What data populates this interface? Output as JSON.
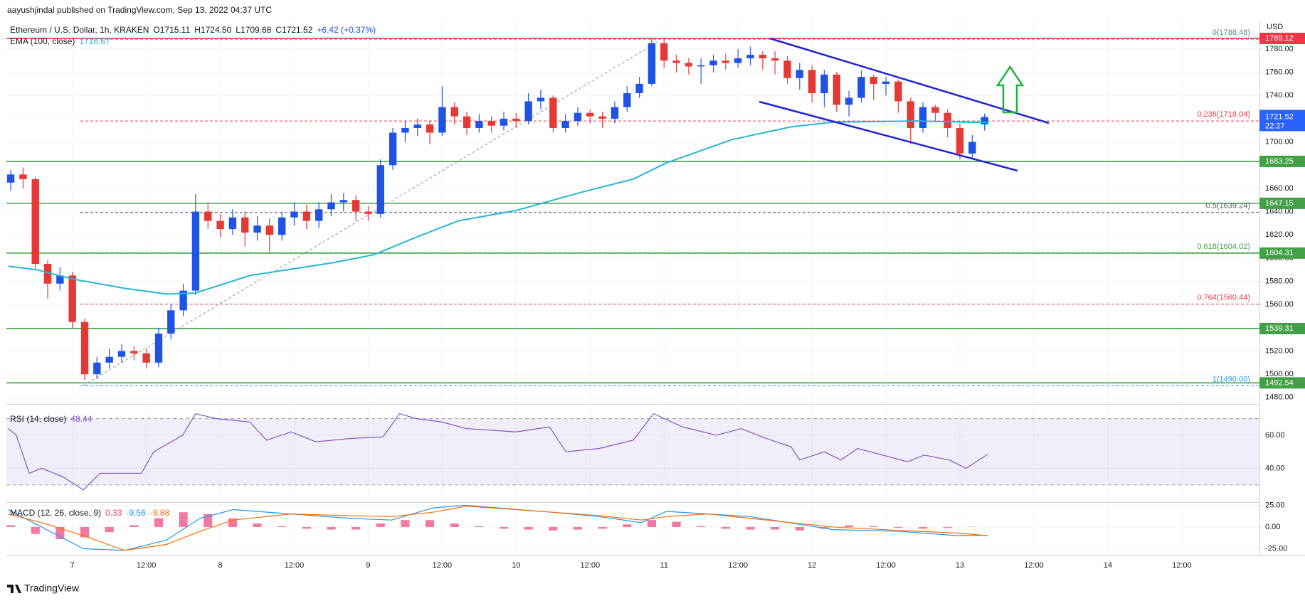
{
  "header": {
    "publisher": "aayushjindal published on TradingView.com, Sep 13, 2022 04:37 UTC",
    "symbol": "Ethereum / U.S. Dollar, 1h, KRAKEN",
    "ohlc_labels": [
      "O1715.11",
      "H1724.50",
      "L1709.68",
      "C1721.52"
    ],
    "change": "+6.42 (+0.37%)",
    "currency": "USD"
  },
  "footer": {
    "brand": "TradingView"
  },
  "chart_data": [
    {
      "type": "candlestick",
      "up_color": "#1e53e5",
      "down_color": "#e53935",
      "grid": true,
      "xlim": [
        -10.7,
        192.6
      ],
      "xticks": [
        {
          "value": 0,
          "label": "7"
        },
        {
          "value": 12,
          "label": "12:00"
        },
        {
          "value": 24,
          "label": "8"
        },
        {
          "value": 36,
          "label": "12:00"
        },
        {
          "value": 48,
          "label": "9"
        },
        {
          "value": 60,
          "label": "12:00"
        },
        {
          "value": 72,
          "label": "10"
        },
        {
          "value": 84,
          "label": "12:00"
        },
        {
          "value": 96,
          "label": "11"
        },
        {
          "value": 108,
          "label": "12:00"
        },
        {
          "value": 120,
          "label": "12"
        },
        {
          "value": 132,
          "label": "12:00"
        },
        {
          "value": 144,
          "label": "13"
        },
        {
          "value": 156,
          "label": "12:00"
        },
        {
          "value": 168,
          "label": "14"
        },
        {
          "value": 180,
          "label": "12:00"
        }
      ],
      "ylim": [
        1475,
        1802
      ],
      "yticks": [
        {
          "value": 1480,
          "label": "1480.00"
        },
        {
          "value": 1500,
          "label": "1500.00"
        },
        {
          "value": 1520,
          "label": "1520.00"
        },
        {
          "value": 1540,
          "label": "1540.00"
        },
        {
          "value": 1560,
          "label": "1560.00"
        },
        {
          "value": 1580,
          "label": "1580.00"
        },
        {
          "value": 1600,
          "label": "1600.00"
        },
        {
          "value": 1620,
          "label": "1620.00"
        },
        {
          "value": 1640,
          "label": "1640.00"
        },
        {
          "value": 1660,
          "label": "1660.00"
        },
        {
          "value": 1680,
          "label": "1680.00"
        },
        {
          "value": 1700,
          "label": "1700.00"
        },
        {
          "value": 1720,
          "label": "1720.00"
        },
        {
          "value": 1740,
          "label": "1740.00"
        },
        {
          "value": 1760,
          "label": "1760.00"
        },
        {
          "value": 1780,
          "label": "1780.00"
        }
      ],
      "x": [
        -10,
        -8,
        -6,
        -4,
        -2,
        0,
        2,
        4,
        6,
        8,
        10,
        12,
        14,
        16,
        18,
        20,
        22,
        24,
        26,
        28,
        30,
        32,
        34,
        36,
        38,
        40,
        42,
        44,
        46,
        48,
        50,
        52,
        54,
        56,
        58,
        60,
        62,
        64,
        66,
        68,
        70,
        72,
        74,
        76,
        78,
        80,
        82,
        84,
        86,
        88,
        90,
        92,
        94,
        96,
        98,
        100,
        102,
        104,
        106,
        108,
        110,
        112,
        114,
        116,
        118,
        120,
        122,
        124,
        126,
        128,
        130,
        132,
        134,
        136,
        138,
        140,
        142,
        144,
        146,
        148
      ],
      "ohlc": [
        [
          1665,
          1676,
          1658,
          1672
        ],
        [
          1672,
          1678,
          1660,
          1668
        ],
        [
          1668,
          1670,
          1590,
          1595
        ],
        [
          1595,
          1598,
          1565,
          1578
        ],
        [
          1578,
          1592,
          1572,
          1585
        ],
        [
          1585,
          1588,
          1540,
          1545
        ],
        [
          1545,
          1548,
          1495,
          1500
        ],
        [
          1500,
          1515,
          1496,
          1510
        ],
        [
          1510,
          1522,
          1505,
          1515
        ],
        [
          1515,
          1526,
          1510,
          1520
        ],
        [
          1520,
          1524,
          1512,
          1518
        ],
        [
          1518,
          1522,
          1505,
          1510
        ],
        [
          1510,
          1540,
          1506,
          1535
        ],
        [
          1535,
          1560,
          1530,
          1555
        ],
        [
          1555,
          1578,
          1550,
          1572
        ],
        [
          1572,
          1655,
          1568,
          1640
        ],
        [
          1640,
          1648,
          1625,
          1632
        ],
        [
          1632,
          1638,
          1618,
          1625
        ],
        [
          1625,
          1642,
          1620,
          1635
        ],
        [
          1635,
          1640,
          1610,
          1622
        ],
        [
          1622,
          1636,
          1615,
          1628
        ],
        [
          1628,
          1634,
          1605,
          1620
        ],
        [
          1620,
          1640,
          1615,
          1635
        ],
        [
          1635,
          1648,
          1628,
          1640
        ],
        [
          1640,
          1646,
          1625,
          1632
        ],
        [
          1632,
          1648,
          1626,
          1642
        ],
        [
          1642,
          1655,
          1636,
          1648
        ],
        [
          1648,
          1656,
          1640,
          1650
        ],
        [
          1650,
          1654,
          1632,
          1640
        ],
        [
          1640,
          1645,
          1632,
          1638
        ],
        [
          1638,
          1685,
          1635,
          1680
        ],
        [
          1680,
          1712,
          1676,
          1708
        ],
        [
          1708,
          1718,
          1700,
          1712
        ],
        [
          1712,
          1720,
          1705,
          1715
        ],
        [
          1715,
          1718,
          1698,
          1708
        ],
        [
          1708,
          1748,
          1705,
          1730
        ],
        [
          1730,
          1734,
          1715,
          1722
        ],
        [
          1722,
          1726,
          1706,
          1712
        ],
        [
          1712,
          1724,
          1708,
          1718
        ],
        [
          1718,
          1722,
          1708,
          1714
        ],
        [
          1714,
          1726,
          1710,
          1720
        ],
        [
          1720,
          1725,
          1712,
          1718
        ],
        [
          1718,
          1742,
          1715,
          1735
        ],
        [
          1735,
          1745,
          1728,
          1738
        ],
        [
          1738,
          1740,
          1708,
          1712
        ],
        [
          1712,
          1724,
          1708,
          1718
        ],
        [
          1718,
          1730,
          1714,
          1725
        ],
        [
          1725,
          1728,
          1716,
          1722
        ],
        [
          1722,
          1726,
          1712,
          1720
        ],
        [
          1720,
          1735,
          1716,
          1730
        ],
        [
          1730,
          1748,
          1726,
          1742
        ],
        [
          1742,
          1756,
          1738,
          1750
        ],
        [
          1750,
          1789,
          1748,
          1785
        ],
        [
          1785,
          1788,
          1764,
          1770
        ],
        [
          1770,
          1775,
          1760,
          1768
        ],
        [
          1768,
          1772,
          1758,
          1765
        ],
        [
          1765,
          1772,
          1750,
          1766
        ],
        [
          1766,
          1775,
          1760,
          1770
        ],
        [
          1770,
          1776,
          1762,
          1768
        ],
        [
          1768,
          1780,
          1764,
          1772
        ],
        [
          1772,
          1782,
          1766,
          1775
        ],
        [
          1775,
          1778,
          1762,
          1772
        ],
        [
          1772,
          1778,
          1758,
          1770
        ],
        [
          1770,
          1774,
          1750,
          1755
        ],
        [
          1755,
          1768,
          1745,
          1762
        ],
        [
          1762,
          1766,
          1734,
          1742
        ],
        [
          1742,
          1762,
          1730,
          1758
        ],
        [
          1758,
          1760,
          1726,
          1732
        ],
        [
          1732,
          1744,
          1722,
          1738
        ],
        [
          1738,
          1762,
          1734,
          1756
        ],
        [
          1756,
          1758,
          1736,
          1750
        ],
        [
          1750,
          1756,
          1740,
          1752
        ],
        [
          1752,
          1754,
          1725,
          1735
        ],
        [
          1735,
          1738,
          1698,
          1712
        ],
        [
          1712,
          1734,
          1708,
          1730
        ],
        [
          1730,
          1732,
          1718,
          1725
        ],
        [
          1725,
          1728,
          1704,
          1712
        ],
        [
          1712,
          1716,
          1685,
          1690
        ],
        [
          1690,
          1706,
          1686,
          1700
        ],
        [
          1715.11,
          1724.5,
          1709.68,
          1721.52
        ]
      ],
      "last": 1721.52,
      "countdown": "22:27",
      "last_color": "#2962ff",
      "ema": {
        "name": "EMA (100, close)",
        "last": 1716.67,
        "color": "#26b5d6",
        "x": [
          -10.4,
          -5.8,
          0,
          8.5,
          15.3,
          20,
          28.8,
          42.3,
          49,
          55.8,
          62.6,
          72,
          82.8,
          91,
          96.4,
          107,
          116.6,
          123.4,
          137,
          148.5
        ],
        "values": [
          1593,
          1590,
          1582,
          1574,
          1569,
          1570,
          1585,
          1596,
          1603,
          1618,
          1632,
          1641,
          1657,
          1668,
          1682,
          1702,
          1713,
          1717,
          1718,
          1716.67
        ]
      },
      "levels": [
        {
          "value": 1789.12,
          "color": "#f23645"
        },
        {
          "value": 1683.25,
          "color": "#43a047"
        },
        {
          "value": 1647.15,
          "color": "#43a047"
        },
        {
          "value": 1604.31,
          "color": "#43a047"
        },
        {
          "value": 1539.31,
          "color": "#43a047"
        },
        {
          "value": 1492.54,
          "color": "#43a047"
        }
      ],
      "fib": [
        {
          "label": "0(1788.48)",
          "value": 1788.48,
          "color": "#787b86"
        },
        {
          "label": "0.236(1718.04)",
          "value": 1718.04,
          "color": "#f23645"
        },
        {
          "label": "0.5(1639.24)",
          "value": 1639.24,
          "color": "#555a66"
        },
        {
          "label": "0.618(1604.02)",
          "value": 1604.02,
          "color": "#43a047"
        },
        {
          "label": "0.764(1560.44)",
          "value": 1560.44,
          "color": "#f23645"
        },
        {
          "label": "1(1490.00)",
          "value": 1490.0,
          "color": "#2196f3"
        }
      ]
    },
    {
      "type": "line",
      "name": "RSI (14, close)",
      "last": 48.44,
      "color": "#7e57c2",
      "ylim": [
        20,
        78
      ],
      "yticks": [
        {
          "value": 60,
          "label": "60.00"
        },
        {
          "value": 40,
          "label": "40.00"
        }
      ],
      "bands": [
        30,
        70
      ],
      "x": [
        -10.4,
        -9.1,
        -7,
        -5,
        -1.6,
        1.8,
        4.5,
        11.2,
        13.2,
        17.9,
        20,
        23.4,
        28.8,
        31.5,
        35.5,
        39.5,
        45,
        50.4,
        53.1,
        55.8,
        59.9,
        63.9,
        72,
        77.4,
        80.1,
        85.5,
        91,
        94.3,
        99,
        104.5,
        108.5,
        112.6,
        116.6,
        118,
        122,
        124.7,
        127.4,
        135.5,
        138.2,
        142.3,
        145,
        148.5
      ],
      "values": [
        64,
        60,
        37,
        40,
        35,
        27,
        37,
        37,
        50,
        60,
        73,
        70,
        68,
        57,
        62,
        56,
        58,
        59,
        73,
        70,
        68,
        64,
        62,
        65,
        50,
        52,
        57,
        73,
        65,
        60,
        64,
        58,
        53,
        45,
        50,
        45,
        52,
        44,
        48,
        45,
        40,
        48.44
      ]
    },
    {
      "type": "macd",
      "name": "MACD (12, 26, close, 9)",
      "ylim": [
        -32,
        27
      ],
      "yticks": [
        {
          "value": 25,
          "label": "25.00"
        },
        {
          "value": 0,
          "label": "0.00"
        },
        {
          "value": -25,
          "label": "-25.00"
        }
      ],
      "histogram": {
        "last": 0.33,
        "color": "#ec407a",
        "x": [
          -10,
          -6,
          -2,
          2,
          6,
          10,
          14,
          18,
          22,
          26,
          30,
          34,
          38,
          42,
          46,
          50,
          54,
          58,
          62,
          66,
          70,
          74,
          78,
          82,
          86,
          90,
          94,
          98,
          102,
          106,
          110,
          114,
          118,
          122,
          126,
          130,
          134,
          138,
          142,
          146
        ],
        "values": [
          2,
          -8,
          -14,
          -12,
          -6,
          2,
          10,
          17,
          15,
          10,
          4,
          1,
          -2,
          -3,
          -3,
          4,
          8,
          8,
          4,
          1,
          -2,
          -3,
          -4,
          -3,
          -2,
          3,
          8,
          6,
          1,
          -2,
          -3,
          -3,
          -4,
          -2,
          2,
          1,
          -1,
          -2,
          -1,
          0.33
        ]
      },
      "x": [
        -10.4,
        -5,
        1.8,
        8.5,
        15.3,
        20.7,
        26.1,
        35.5,
        45,
        51.8,
        58.5,
        63.9,
        76.1,
        85.5,
        92.3,
        96.4,
        103.1,
        109.9,
        123.4,
        134.2,
        143.6,
        148.5
      ],
      "series": [
        {
          "name": "MACD",
          "last": -9.56,
          "color": "#2196f3",
          "values": [
            20,
            0,
            -25,
            -27,
            -15,
            10,
            20,
            15,
            10,
            8,
            22,
            25,
            18,
            12,
            5,
            18,
            15,
            12,
            -3,
            -5,
            -10,
            -9.56
          ]
        },
        {
          "name": "Signal",
          "last": -9.88,
          "color": "#ff6d00",
          "values": [
            15,
            5,
            -10,
            -27,
            -20,
            -5,
            8,
            15,
            13,
            12,
            17,
            24,
            18,
            13,
            8,
            12,
            15,
            10,
            0,
            -4,
            -7,
            -9.88
          ]
        }
      ]
    }
  ]
}
